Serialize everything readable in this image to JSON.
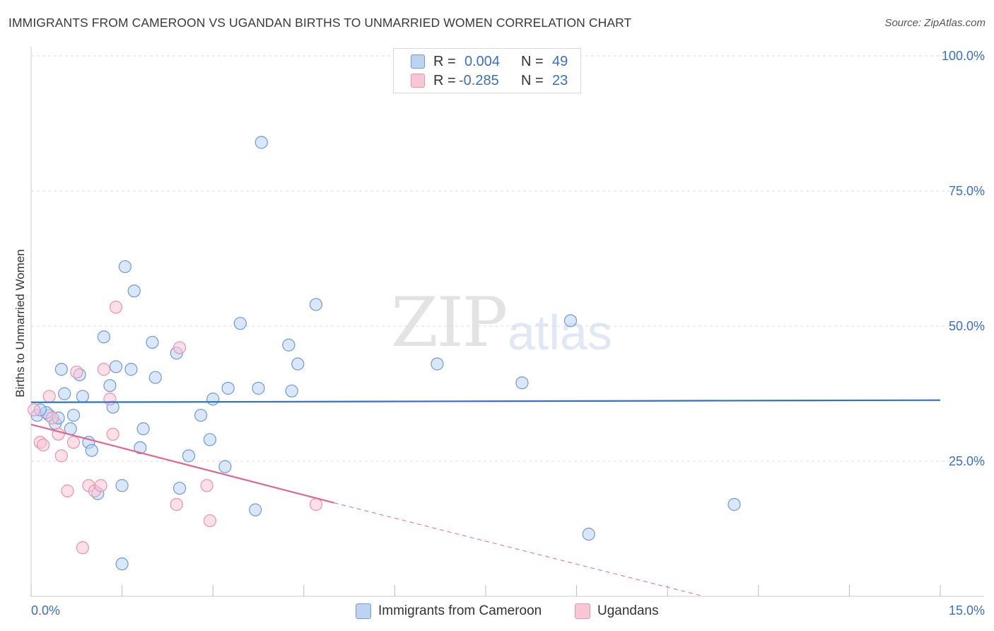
{
  "title": "IMMIGRANTS FROM CAMEROON VS UGANDAN BIRTHS TO UNMARRIED WOMEN CORRELATION CHART",
  "source": "Source: ZipAtlas.com",
  "watermark": {
    "zip": "ZIP",
    "atlas": "atlas"
  },
  "legend": {
    "rows": [
      {
        "r_key": "R =",
        "r_val": "0.004",
        "n_key": "N =",
        "n_val": "49"
      },
      {
        "r_key": "R =",
        "r_val": "-0.285",
        "n_key": "N =",
        "n_val": "23"
      }
    ]
  },
  "bottom_legend": [
    "Immigrants from Cameroon",
    "Ugandans"
  ],
  "colors": {
    "blue_fill": "#bcd3f2",
    "blue_stroke": "#6d9ad8",
    "blue_line": "#2f73c9",
    "pink_fill": "#f9c6d6",
    "pink_stroke": "#ee8fae",
    "pink_line": "#e2668f",
    "tick_label": "#3a6fc7",
    "grid": "#dddddd"
  },
  "chart_data": {
    "type": "scatter",
    "title": "IMMIGRANTS FROM CAMEROON VS UGANDAN BIRTHS TO UNMARRIED WOMEN CORRELATION CHART",
    "xlabel": "",
    "ylabel": "Births to Unmarried Women",
    "xlim": [
      0,
      15
    ],
    "ylim": [
      0,
      100
    ],
    "x_tick_labels": [
      "0.0%",
      "15.0%"
    ],
    "y_ticks": [
      25,
      50,
      75,
      100
    ],
    "y_tick_labels": [
      "25.0%",
      "50.0%",
      "75.0%",
      "100.0%"
    ],
    "grid": true,
    "series": [
      {
        "name": "Immigrants from Cameroon",
        "color": "blue",
        "points": [
          [
            0.1,
            33.5
          ],
          [
            0.3,
            33.5
          ],
          [
            0.25,
            34
          ],
          [
            0.4,
            32
          ],
          [
            0.45,
            33
          ],
          [
            0.5,
            42
          ],
          [
            0.55,
            37.5
          ],
          [
            0.65,
            31
          ],
          [
            0.7,
            33.5
          ],
          [
            0.8,
            41
          ],
          [
            0.85,
            37
          ],
          [
            0.95,
            28.5
          ],
          [
            1.0,
            27
          ],
          [
            1.1,
            19
          ],
          [
            1.2,
            48
          ],
          [
            1.3,
            39
          ],
          [
            1.35,
            35
          ],
          [
            1.4,
            42.5
          ],
          [
            1.5,
            20.5
          ],
          [
            1.5,
            6
          ],
          [
            1.55,
            61
          ],
          [
            1.65,
            42
          ],
          [
            1.7,
            56.5
          ],
          [
            1.8,
            27.5
          ],
          [
            1.85,
            31
          ],
          [
            2.0,
            47
          ],
          [
            2.05,
            40.5
          ],
          [
            2.4,
            45
          ],
          [
            2.45,
            20
          ],
          [
            2.6,
            26
          ],
          [
            2.8,
            33.5
          ],
          [
            2.95,
            29
          ],
          [
            3.0,
            36.5
          ],
          [
            3.2,
            24
          ],
          [
            3.25,
            38.5
          ],
          [
            3.45,
            50.5
          ],
          [
            3.7,
            16
          ],
          [
            3.75,
            38.5
          ],
          [
            3.8,
            84
          ],
          [
            4.25,
            46.5
          ],
          [
            4.3,
            38
          ],
          [
            4.4,
            43
          ],
          [
            4.7,
            54
          ],
          [
            6.7,
            43
          ],
          [
            8.1,
            39.5
          ],
          [
            8.9,
            51
          ],
          [
            9.2,
            11.5
          ],
          [
            11.6,
            17
          ],
          [
            0.15,
            34.5
          ]
        ],
        "trend": {
          "x": [
            0,
            15
          ],
          "y": [
            35.9,
            36.3
          ]
        }
      },
      {
        "name": "Ugandans",
        "color": "pink",
        "points": [
          [
            0.05,
            34.5
          ],
          [
            0.15,
            28.5
          ],
          [
            0.2,
            28
          ],
          [
            0.3,
            37
          ],
          [
            0.45,
            30
          ],
          [
            0.5,
            26
          ],
          [
            0.6,
            19.5
          ],
          [
            0.7,
            28.5
          ],
          [
            0.75,
            41.5
          ],
          [
            0.85,
            9
          ],
          [
            0.95,
            20.5
          ],
          [
            1.05,
            19.5
          ],
          [
            1.15,
            20.5
          ],
          [
            1.2,
            42
          ],
          [
            1.3,
            36.5
          ],
          [
            1.35,
            30
          ],
          [
            1.4,
            53.5
          ],
          [
            2.4,
            17
          ],
          [
            2.45,
            46
          ],
          [
            2.9,
            20.5
          ],
          [
            2.95,
            14
          ],
          [
            4.7,
            17
          ],
          [
            0.35,
            33
          ]
        ],
        "trend": {
          "x": [
            0,
            5
          ],
          "y": [
            31.8,
            17.3
          ]
        },
        "trend_extension": {
          "x": [
            5,
            11.1
          ],
          "y": [
            17.3,
            0
          ]
        }
      }
    ]
  }
}
